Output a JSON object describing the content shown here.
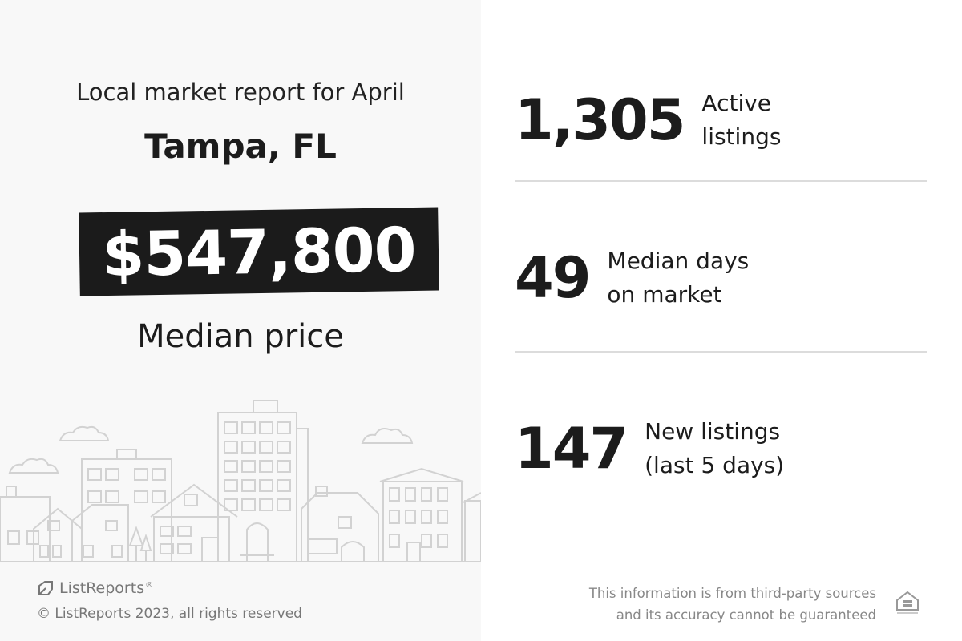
{
  "report": {
    "heading": "Local market report for April",
    "city": "Tampa, FL",
    "price": "$547,800",
    "price_label": "Median price"
  },
  "stats": [
    {
      "value": "1,305",
      "label_line1": "Active",
      "label_line2": "listings"
    },
    {
      "value": "49",
      "label_line1": "Median days",
      "label_line2": "on market"
    },
    {
      "value": "147",
      "label_line1": "New listings",
      "label_line2": "(last 5 days)"
    }
  ],
  "footer": {
    "brand_name": "ListReports",
    "brand_mark": "®",
    "copyright": "© ListReports 2023, all rights reserved",
    "disclaimer_line1": "This information is from third-party sources",
    "disclaimer_line2": "and its accuracy cannot be guaranteed"
  },
  "icons": {
    "brand": "listreports-logo-icon",
    "housing": "equal-housing-opportunity-icon"
  },
  "colors": {
    "left_background": "#f8f8f8",
    "price_box": "#1b1b1b",
    "divider": "#dcdcdc"
  }
}
